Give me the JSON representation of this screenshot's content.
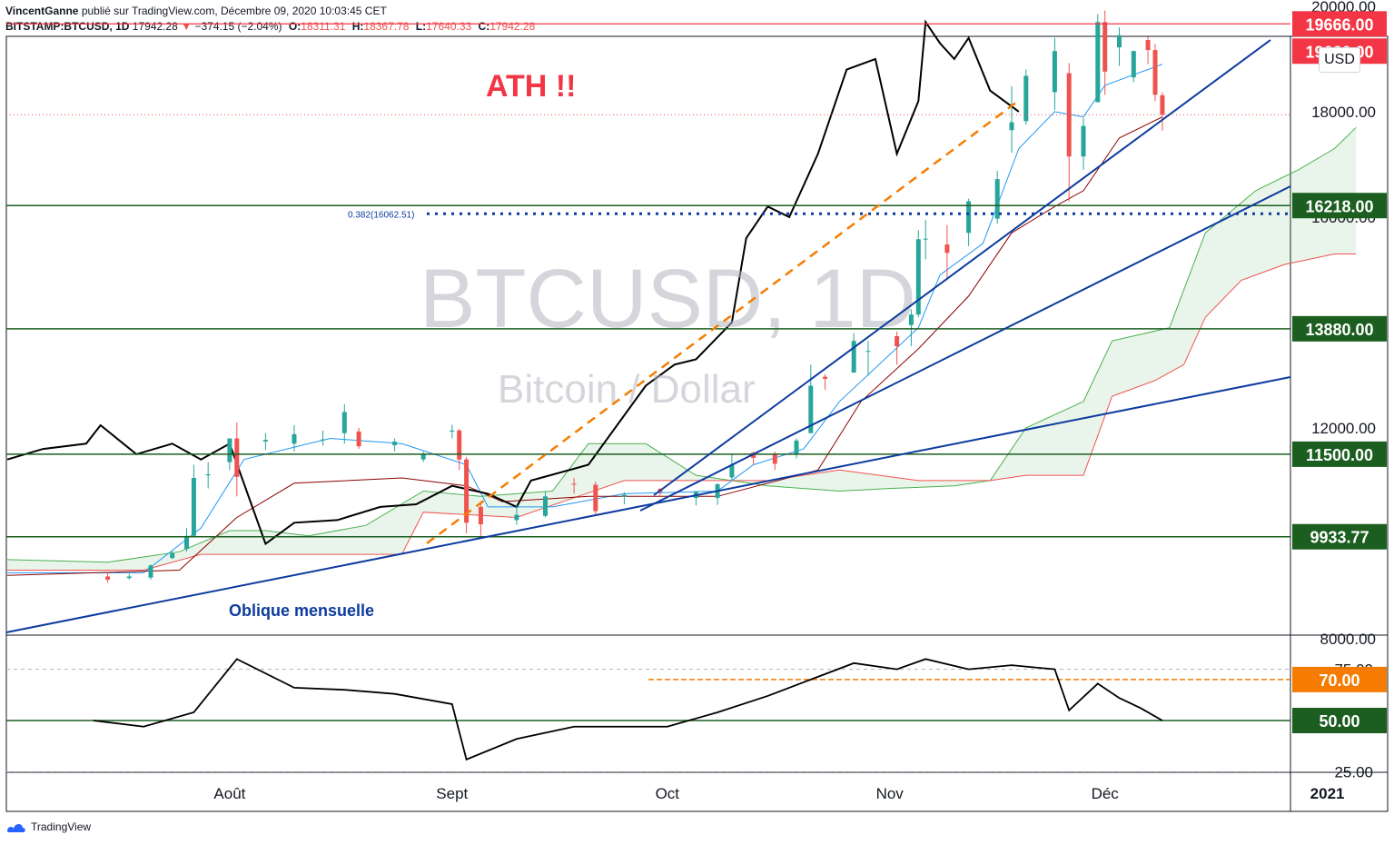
{
  "header": {
    "author": "VincentGanne",
    "published": "publié sur TradingView.com, Décembre 09, 2020 10:03:45 CET",
    "symbol": "BITSTAMP:BTCUSD, 1D",
    "last": "17942.28",
    "change": "−374.15 (−2.04%)",
    "o_label": "O:",
    "o": "18311.31",
    "h_label": "H:",
    "h": "18367.78",
    "l_label": "L:",
    "l": "17640.33",
    "c_label": "C:",
    "c": "17942.28"
  },
  "currency": "USD",
  "footer": {
    "brand": "TradingView"
  },
  "colors": {
    "up": "#26a69a",
    "down": "#ef5350",
    "hline_green": "#1b5e20",
    "ath": "#f23645",
    "trend": "#0d3b9e",
    "orange": "#f57c00",
    "black": "#000000",
    "tenkan": "#2196f3",
    "kijun": "#8b0000",
    "cloud_green": "#4caf50",
    "cloud_red": "#ef9a9a"
  },
  "chart_data": [
    {
      "type": "candlestick",
      "title": "BTCUSD, 1D",
      "subtitle": "Bitcoin / Dollar",
      "annotations": [
        "ATH !!",
        "Oblique mensuelle",
        "0.382(16062.51)"
      ],
      "x_tick_labels": [
        "Août",
        "Sept",
        "Oct",
        "Nov",
        "Déc",
        "2021"
      ],
      "y_tick_labels": [
        "20000.00",
        "18000.00",
        "16000.00",
        "12000.00",
        "8000.00"
      ],
      "y_ticks": [
        20000,
        18000,
        16000,
        12000,
        8000
      ],
      "horizontal_levels": [
        {
          "label": "19666.00",
          "value": 19666,
          "color": "#f23645"
        },
        {
          "label": "19666.00",
          "value": 19666,
          "color": "#f23645"
        },
        {
          "label": "16218.00",
          "value": 16218,
          "color": "#1b5e20"
        },
        {
          "label": "13880.00",
          "value": 13880,
          "color": "#1b5e20"
        },
        {
          "label": "11500.00",
          "value": 11500,
          "color": "#1b5e20"
        },
        {
          "label": "9933.77",
          "value": 9933.77,
          "color": "#1b5e20"
        }
      ],
      "fib_level": {
        "label": "0.382(16062.51)",
        "value": 16062.51
      },
      "candles": [
        {
          "date": "2020-07-15",
          "o": 9180,
          "h": 9260,
          "l": 9060,
          "c": 9120
        },
        {
          "date": "2020-07-18",
          "o": 9150,
          "h": 9230,
          "l": 9120,
          "c": 9180
        },
        {
          "date": "2020-07-21",
          "o": 9160,
          "h": 9410,
          "l": 9120,
          "c": 9390
        },
        {
          "date": "2020-07-24",
          "o": 9530,
          "h": 9660,
          "l": 9510,
          "c": 9620
        },
        {
          "date": "2020-07-26",
          "o": 9700,
          "h": 10100,
          "l": 9650,
          "c": 9950
        },
        {
          "date": "2020-07-27",
          "o": 9950,
          "h": 11300,
          "l": 9920,
          "c": 11050
        },
        {
          "date": "2020-07-29",
          "o": 11100,
          "h": 11350,
          "l": 10850,
          "c": 11120
        },
        {
          "date": "2020-08-01",
          "o": 11350,
          "h": 11800,
          "l": 11200,
          "c": 11800
        },
        {
          "date": "2020-08-02",
          "o": 11800,
          "h": 12100,
          "l": 10700,
          "c": 11070
        },
        {
          "date": "2020-08-06",
          "o": 11740,
          "h": 11900,
          "l": 11580,
          "c": 11770
        },
        {
          "date": "2020-08-10",
          "o": 11700,
          "h": 12050,
          "l": 11550,
          "c": 11880
        },
        {
          "date": "2020-08-14",
          "o": 11770,
          "h": 11950,
          "l": 11660,
          "c": 11780
        },
        {
          "date": "2020-08-17",
          "o": 11900,
          "h": 12450,
          "l": 11700,
          "c": 12300
        },
        {
          "date": "2020-08-19",
          "o": 11930,
          "h": 12000,
          "l": 11600,
          "c": 11650
        },
        {
          "date": "2020-08-24",
          "o": 11670,
          "h": 11800,
          "l": 11550,
          "c": 11740
        },
        {
          "date": "2020-08-28",
          "o": 11400,
          "h": 11550,
          "l": 11350,
          "c": 11510
        },
        {
          "date": "2020-09-01",
          "o": 11930,
          "h": 12060,
          "l": 11800,
          "c": 11950
        },
        {
          "date": "2020-09-02",
          "o": 11950,
          "h": 11980,
          "l": 11200,
          "c": 11400
        },
        {
          "date": "2020-09-03",
          "o": 11400,
          "h": 11450,
          "l": 10000,
          "c": 10200
        },
        {
          "date": "2020-09-05",
          "o": 10500,
          "h": 10600,
          "l": 9900,
          "c": 10170
        },
        {
          "date": "2020-09-10",
          "o": 10250,
          "h": 10550,
          "l": 10160,
          "c": 10350
        },
        {
          "date": "2020-09-14",
          "o": 10330,
          "h": 10800,
          "l": 10300,
          "c": 10700
        },
        {
          "date": "2020-09-18",
          "o": 10940,
          "h": 11050,
          "l": 10750,
          "c": 10930
        },
        {
          "date": "2020-09-21",
          "o": 10920,
          "h": 10980,
          "l": 10350,
          "c": 10420
        },
        {
          "date": "2020-09-25",
          "o": 10690,
          "h": 10780,
          "l": 10550,
          "c": 10730
        },
        {
          "date": "2020-09-30",
          "o": 10840,
          "h": 10860,
          "l": 10700,
          "c": 10780
        },
        {
          "date": "2020-10-05",
          "o": 10670,
          "h": 10800,
          "l": 10530,
          "c": 10790
        },
        {
          "date": "2020-10-08",
          "o": 10670,
          "h": 10950,
          "l": 10540,
          "c": 10930
        },
        {
          "date": "2020-10-10",
          "o": 11060,
          "h": 11500,
          "l": 11000,
          "c": 11300
        },
        {
          "date": "2020-10-13",
          "o": 11530,
          "h": 11550,
          "l": 11300,
          "c": 11430
        },
        {
          "date": "2020-10-16",
          "o": 11500,
          "h": 11550,
          "l": 11200,
          "c": 11320
        },
        {
          "date": "2020-10-19",
          "o": 11500,
          "h": 11800,
          "l": 11420,
          "c": 11760
        },
        {
          "date": "2020-10-21",
          "o": 11900,
          "h": 13200,
          "l": 11900,
          "c": 12800
        },
        {
          "date": "2020-10-23",
          "o": 12970,
          "h": 13020,
          "l": 12720,
          "c": 12930
        },
        {
          "date": "2020-10-27",
          "o": 13050,
          "h": 13800,
          "l": 13040,
          "c": 13650
        },
        {
          "date": "2020-10-29",
          "o": 13460,
          "h": 13650,
          "l": 12990,
          "c": 13460
        },
        {
          "date": "2020-11-02",
          "o": 13740,
          "h": 13830,
          "l": 13200,
          "c": 13550
        },
        {
          "date": "2020-11-04",
          "o": 13950,
          "h": 14250,
          "l": 13550,
          "c": 14150
        },
        {
          "date": "2020-11-05",
          "o": 14150,
          "h": 15750,
          "l": 14100,
          "c": 15580
        },
        {
          "date": "2020-11-06",
          "o": 15580,
          "h": 15950,
          "l": 15200,
          "c": 15590
        },
        {
          "date": "2020-11-09",
          "o": 15480,
          "h": 15850,
          "l": 14800,
          "c": 15320
        },
        {
          "date": "2020-11-12",
          "o": 15700,
          "h": 16350,
          "l": 15450,
          "c": 16300
        },
        {
          "date": "2020-11-16",
          "o": 15970,
          "h": 16880,
          "l": 15870,
          "c": 16720
        },
        {
          "date": "2020-11-18",
          "o": 17650,
          "h": 18480,
          "l": 17220,
          "c": 17800
        },
        {
          "date": "2020-11-20",
          "o": 17820,
          "h": 18800,
          "l": 17750,
          "c": 18680
        },
        {
          "date": "2020-11-24",
          "o": 18370,
          "h": 19400,
          "l": 18030,
          "c": 19150
        },
        {
          "date": "2020-11-26",
          "o": 18730,
          "h": 18920,
          "l": 16300,
          "c": 17150
        },
        {
          "date": "2020-11-28",
          "o": 17150,
          "h": 17880,
          "l": 16900,
          "c": 17730
        },
        {
          "date": "2020-11-30",
          "o": 18180,
          "h": 19850,
          "l": 18180,
          "c": 19700
        },
        {
          "date": "2020-12-01",
          "o": 19700,
          "h": 19920,
          "l": 18320,
          "c": 18760
        },
        {
          "date": "2020-12-03",
          "o": 19220,
          "h": 19600,
          "l": 18870,
          "c": 19450
        },
        {
          "date": "2020-12-05",
          "o": 18650,
          "h": 19160,
          "l": 18560,
          "c": 19150
        },
        {
          "date": "2020-12-07",
          "o": 19360,
          "h": 19420,
          "l": 18900,
          "c": 19170
        },
        {
          "date": "2020-12-08",
          "o": 19170,
          "h": 19290,
          "l": 18200,
          "c": 18320
        },
        {
          "date": "2020-12-09",
          "o": 18311.31,
          "h": 18367.78,
          "l": 17640.33,
          "c": 17942.28
        }
      ]
    },
    {
      "type": "line",
      "title": "RSI",
      "y_tick_labels": [
        "75.00",
        "25.00"
      ],
      "y_ticks": [
        75,
        25
      ],
      "levels": [
        {
          "label": "70.00",
          "value": 70
        },
        {
          "label": "50.00",
          "value": 50
        }
      ],
      "x": [
        "2020-07-13",
        "2020-07-20",
        "2020-07-27",
        "2020-08-02",
        "2020-08-10",
        "2020-08-17",
        "2020-08-24",
        "2020-09-01",
        "2020-09-03",
        "2020-09-10",
        "2020-09-18",
        "2020-09-25",
        "2020-10-01",
        "2020-10-08",
        "2020-10-15",
        "2020-10-21",
        "2020-10-27",
        "2020-11-02",
        "2020-11-06",
        "2020-11-12",
        "2020-11-18",
        "2020-11-24",
        "2020-11-26",
        "2020-11-30",
        "2020-12-03",
        "2020-12-06",
        "2020-12-09"
      ],
      "y": [
        50,
        47,
        54,
        80,
        66,
        65,
        63,
        58,
        31,
        41,
        47,
        47,
        47,
        54,
        62,
        70,
        78,
        75,
        80,
        75,
        77,
        75,
        55,
        68,
        61,
        56,
        50
      ]
    }
  ]
}
